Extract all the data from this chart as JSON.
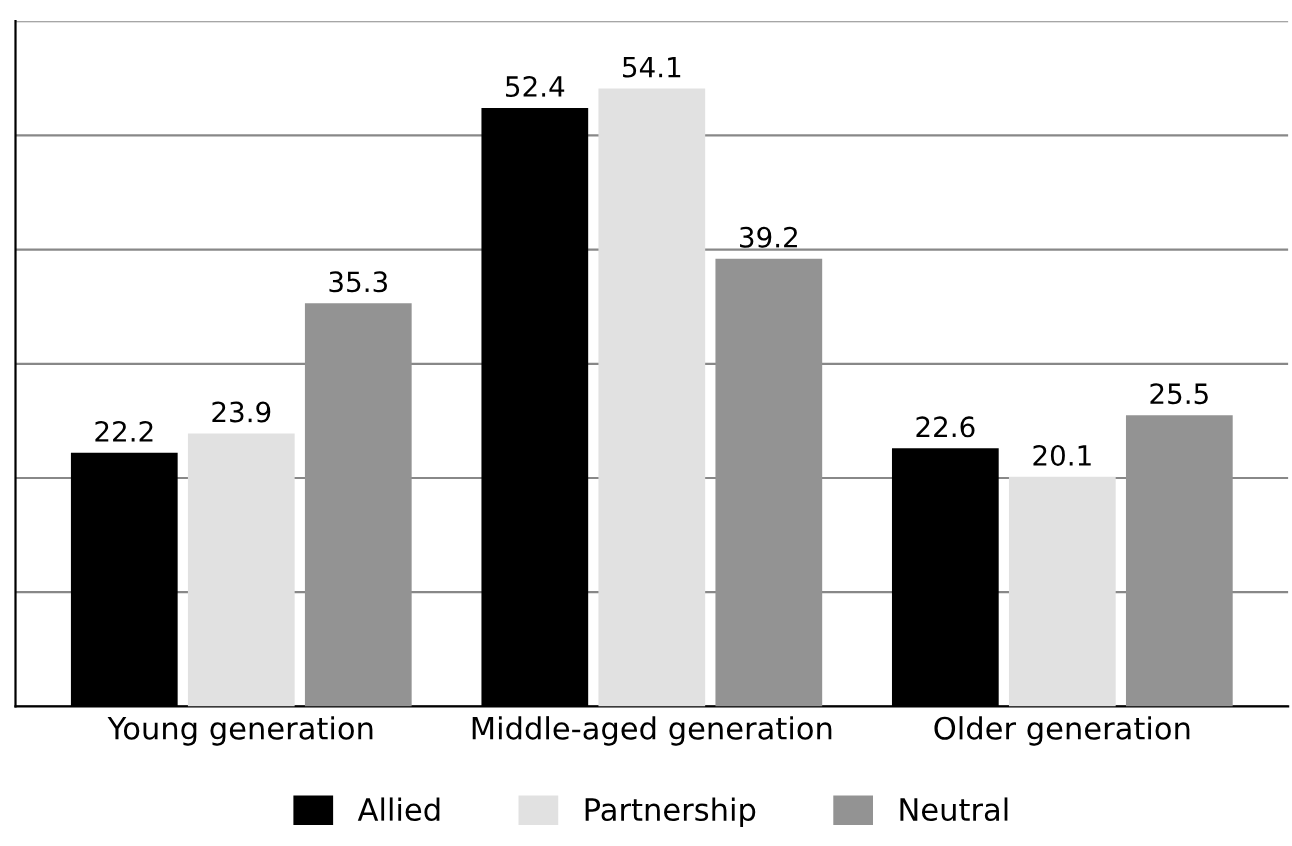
{
  "chart_data": {
    "type": "bar",
    "categories": [
      "Young generation",
      "Middle-aged generation",
      "Older generation"
    ],
    "series": [
      {
        "name": "Allied",
        "color": "#000000",
        "values": [
          22.2,
          52.4,
          22.6
        ]
      },
      {
        "name": "Partnership",
        "color": "#e1e1e1",
        "values": [
          23.9,
          54.1,
          20.1
        ]
      },
      {
        "name": "Neutral",
        "color": "#939393",
        "values": [
          35.3,
          39.2,
          25.5
        ]
      }
    ],
    "ylim": [
      0,
      60
    ],
    "yticks": [
      {
        "value": 0,
        "label": null
      },
      {
        "value": 10,
        "label": null
      },
      {
        "value": 20,
        "label": null
      },
      {
        "value": 30,
        "label": null
      },
      {
        "value": 40,
        "label": null
      },
      {
        "value": 50,
        "label": null
      },
      {
        "value": 60,
        "label": null
      }
    ],
    "tick_labels": "x",
    "grid": "y",
    "data_labels": true,
    "legend": "bottom"
  }
}
